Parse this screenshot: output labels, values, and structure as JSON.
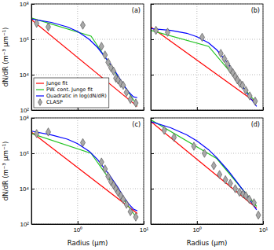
{
  "chart_data": [
    {
      "type": "line",
      "title": "(a)",
      "ylabel": "dN/dR (m⁻³ μm⁻¹)",
      "log": true,
      "grid": true,
      "legend": "lower left",
      "tick_labels": "y",
      "xlim": [
        0.2,
        10
      ],
      "ylim": [
        100,
        100000000
      ],
      "xticks": [
        {
          "value": 1,
          "label": "10⁰"
        },
        {
          "value": 10,
          "label": "10¹"
        }
      ],
      "yticks": [
        {
          "value": 100,
          "label": "10²"
        },
        {
          "value": 10000,
          "label": "10⁴"
        },
        {
          "value": 1000000,
          "label": "10⁶"
        },
        {
          "value": 100000000,
          "label": "10⁸"
        }
      ],
      "series": [
        {
          "name": "Junge fit",
          "type": "line",
          "color": "#ff0000",
          "line_style": "solid",
          "x": [
            0.2,
            8
          ],
          "values": [
            13000000.0,
            160
          ]
        },
        {
          "name": "PW. cont. Junge fit",
          "type": "line",
          "color": "#22c322",
          "line_style": "solid",
          "x": [
            0.2,
            1.6,
            8
          ],
          "values": [
            16000000.0,
            1500000.0,
            180
          ]
        },
        {
          "name": "Quadratic in log(dN/dR)",
          "type": "line",
          "color": "#0000ff",
          "line_style": "solid",
          "x": [
            0.2,
            0.4,
            0.7,
            1,
            1.5,
            2,
            3,
            4,
            5,
            6,
            7,
            8
          ],
          "values": [
            14000000.0,
            9000000.0,
            5000000.0,
            2800000.0,
            1000000.0,
            350000.0,
            50000.0,
            10000.0,
            2500,
            1000,
            560,
            500
          ]
        },
        {
          "name": "CLASP",
          "type": "scatter",
          "color": "#a9a9a9",
          "marker": "diamond",
          "x": [
            0.24,
            0.36,
            1.2,
            2.3,
            2.6,
            2.9,
            3.2,
            3.5,
            3.8,
            4.1,
            4.5,
            4.9,
            5.5,
            6.3,
            7.6
          ],
          "values": [
            8000000.0,
            5000000.0,
            6300000.0,
            400000.0,
            130000.0,
            50000.0,
            25000.0,
            16000.0,
            6300,
            5000,
            3200,
            2500,
            1000,
            400,
            250
          ]
        }
      ]
    },
    {
      "type": "line",
      "title": "(b)",
      "log": true,
      "grid": true,
      "tick_labels": false,
      "xlim": [
        0.2,
        10
      ],
      "ylim": [
        100,
        100000000
      ],
      "xticks": [
        {
          "value": 1,
          "label": "10⁰"
        },
        {
          "value": 10,
          "label": "10¹"
        }
      ],
      "yticks": [
        {
          "value": 100,
          "label": "10²"
        },
        {
          "value": 10000,
          "label": "10⁴"
        },
        {
          "value": 1000000,
          "label": "10⁶"
        },
        {
          "value": 100000000,
          "label": "10⁸"
        }
      ],
      "series": [
        {
          "name": "Junge fit",
          "type": "line",
          "color": "#ff0000",
          "line_style": "solid",
          "x": [
            0.2,
            8
          ],
          "values": [
            5000000.0,
            250
          ]
        },
        {
          "name": "PW. cont. Junge fit",
          "type": "line",
          "color": "#22c322",
          "line_style": "solid",
          "x": [
            0.2,
            1.5,
            8
          ],
          "values": [
            3200000.0,
            400000.0,
            250
          ]
        },
        {
          "name": "Quadratic in log(dN/dR)",
          "type": "line",
          "color": "#0000ff",
          "line_style": "solid",
          "x": [
            0.2,
            0.4,
            0.7,
            1,
            1.5,
            2,
            3,
            4,
            5,
            6,
            7,
            8
          ],
          "values": [
            4000000.0,
            3200000.0,
            2200000.0,
            1400000.0,
            630000.0,
            250000.0,
            40000.0,
            8000,
            2000,
            700,
            320,
            160
          ]
        },
        {
          "name": "CLASP",
          "type": "scatter",
          "color": "#a9a9a9",
          "marker": "diamond",
          "x": [
            0.24,
            0.36,
            1.2,
            2.3,
            2.6,
            2.9,
            3.2,
            3.5,
            3.8,
            4.1,
            4.5,
            4.9,
            5.5,
            6.3,
            7.6
          ],
          "values": [
            3200000.0,
            2500000.0,
            1300000.0,
            160000.0,
            80000.0,
            40000.0,
            20000.0,
            13000.0,
            8000,
            5000,
            3200,
            2500,
            1300,
            630,
            320
          ]
        }
      ]
    },
    {
      "type": "line",
      "title": "(c)",
      "xlabel": "Radius (μm)",
      "ylabel": "dN/dR (m⁻³ μm⁻¹)",
      "log": true,
      "grid": true,
      "xlim": [
        0.2,
        10
      ],
      "ylim": [
        100,
        100000000
      ],
      "xticks": [
        {
          "value": 1,
          "label": "10⁰"
        },
        {
          "value": 10,
          "label": "10¹"
        }
      ],
      "yticks": [
        {
          "value": 100,
          "label": "10²"
        },
        {
          "value": 10000,
          "label": "10⁴"
        },
        {
          "value": 1000000,
          "label": "10⁶"
        },
        {
          "value": 100000000,
          "label": "10⁸"
        }
      ],
      "series": [
        {
          "name": "Junge fit",
          "type": "line",
          "color": "#ff0000",
          "line_style": "solid",
          "x": [
            0.2,
            8
          ],
          "values": [
            16000000.0,
            400
          ]
        },
        {
          "name": "PW. cont. Junge fit",
          "type": "line",
          "color": "#22c322",
          "line_style": "solid",
          "x": [
            0.2,
            1.6,
            8
          ],
          "values": [
            13000000.0,
            1000000.0,
            200
          ]
        },
        {
          "name": "Quadratic in log(dN/dR)",
          "type": "line",
          "color": "#0000ff",
          "line_style": "solid",
          "x": [
            0.2,
            0.4,
            0.7,
            1,
            1.5,
            2,
            3,
            4,
            5,
            6,
            7,
            8
          ],
          "values": [
            18000000.0,
            11000000.0,
            6300000.0,
            3500000.0,
            1300000.0,
            450000.0,
            63000.0,
            13000.0,
            3200,
            1300,
            700,
            560
          ]
        },
        {
          "name": "CLASP",
          "type": "scatter",
          "color": "#a9a9a9",
          "marker": "diamond",
          "x": [
            0.24,
            0.36,
            1.2,
            2.3,
            2.6,
            2.9,
            3.2,
            3.5,
            3.8,
            4.1,
            4.5,
            4.9,
            5.5,
            6.3,
            7.6
          ],
          "values": [
            13000000.0,
            16000000.0,
            4000000.0,
            320000.0,
            130000.0,
            50000.0,
            25000.0,
            16000.0,
            10000.0,
            6300,
            4000,
            2500,
            1300,
            500,
            250
          ]
        }
      ]
    },
    {
      "type": "line",
      "title": "(d)",
      "xlabel": "Radius (μm)",
      "log": true,
      "grid": true,
      "tick_labels": "x",
      "xlim": [
        0.2,
        10
      ],
      "ylim": [
        100,
        100000000
      ],
      "xticks": [
        {
          "value": 1,
          "label": "10⁰"
        },
        {
          "value": 10,
          "label": "10¹"
        }
      ],
      "yticks": [
        {
          "value": 100,
          "label": "10²"
        },
        {
          "value": 10000,
          "label": "10⁴"
        },
        {
          "value": 1000000,
          "label": "10⁶"
        },
        {
          "value": 100000000,
          "label": "10⁸"
        }
      ],
      "series": [
        {
          "name": "Junge fit",
          "type": "line",
          "color": "#ff0000",
          "line_style": "solid",
          "x": [
            0.2,
            8
          ],
          "values": [
            63000000.0,
            800
          ]
        },
        {
          "name": "PW. cont. Junge fit",
          "type": "line",
          "color": "#22c322",
          "line_style": "solid",
          "x": [
            0.2,
            2,
            8
          ],
          "values": [
            80000000.0,
            500000.0,
            1000
          ]
        },
        {
          "name": "Quadratic in log(dN/dR)",
          "type": "line",
          "color": "#0000ff",
          "line_style": "solid",
          "x": [
            0.2,
            0.4,
            0.7,
            1,
            1.5,
            2,
            3,
            4,
            5,
            6,
            7,
            8
          ],
          "values": [
            63000000.0,
            28000000.0,
            11000000.0,
            5000000.0,
            1600000.0,
            560000.0,
            100000.0,
            25000.0,
            8000,
            3200,
            1300,
            630
          ]
        },
        {
          "name": "CLASP",
          "type": "scatter",
          "color": "#a9a9a9",
          "marker": "diamond",
          "x": [
            0.32,
            0.45,
            0.9,
            1.3,
            1.8,
            2.2,
            2.7,
            3.2,
            3.8,
            4.4,
            5,
            5.5,
            6.2,
            7.3,
            8.5
          ],
          "values": [
            20000000.0,
            8000000.0,
            2500000.0,
            1000000.0,
            200000.0,
            63000.0,
            32000.0,
            20000.0,
            10000.0,
            6300,
            5000,
            4000,
            2500,
            1600,
            320
          ]
        }
      ]
    }
  ]
}
